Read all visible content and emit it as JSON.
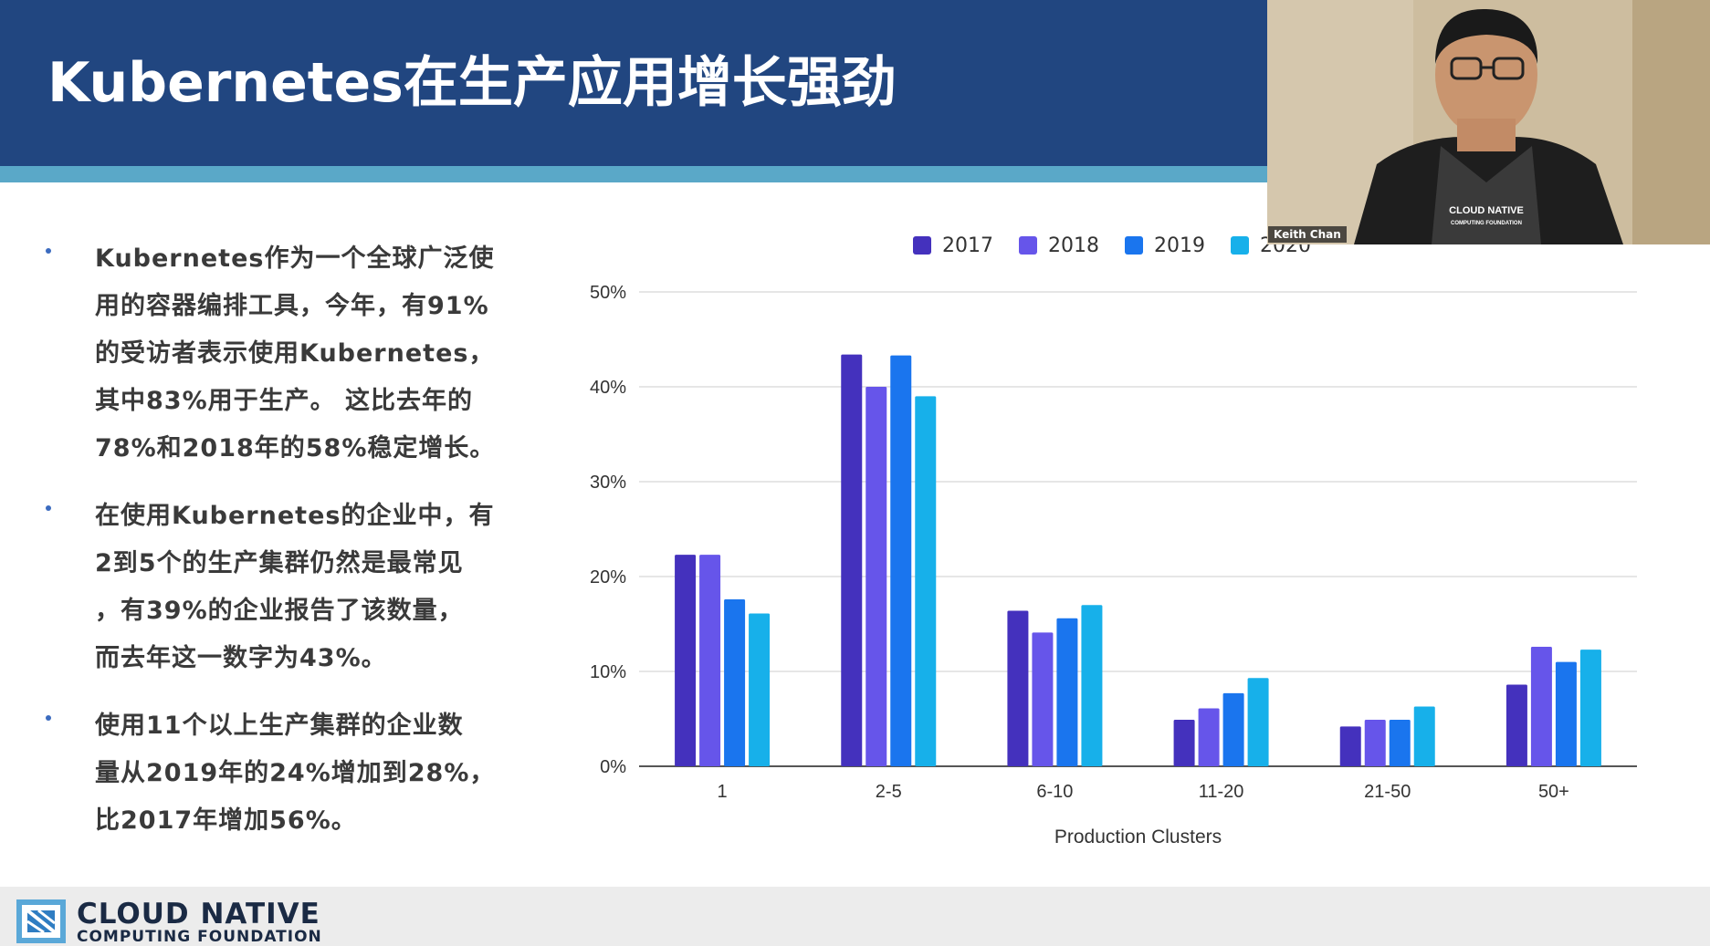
{
  "slide": {
    "title": "Kubernetes在生产应用增长强劲",
    "bullets": [
      {
        "lines": [
          "Kubernetes作为一个全球广泛使",
          "用的容器编排工具，今年，有91%",
          "的受访者表示使用Kubernetes，",
          "其中83%用于生产。 这比去年的",
          "78%和2018年的58%稳定增长。"
        ]
      },
      {
        "lines": [
          "在使用Kubernetes的企业中，有",
          "2到5个的生产集群仍然是最常见",
          "，有39%的企业报告了该数量，",
          "而去年这一数字为43%。"
        ]
      },
      {
        "lines": [
          "使用11个以上生产集群的企业数",
          "量从2019年的24%增加到28%，",
          "比2017年增加56%。"
        ]
      }
    ]
  },
  "chart_data": {
    "type": "bar",
    "categories": [
      "1",
      "2-5",
      "6-10",
      "11-20",
      "21-50",
      "50+"
    ],
    "series": [
      {
        "name": "2017",
        "color": "#4431bd",
        "values": [
          22.3,
          43.4,
          16.4,
          4.9,
          4.2,
          8.6
        ]
      },
      {
        "name": "2018",
        "color": "#6655ea",
        "values": [
          22.3,
          40.0,
          14.1,
          6.1,
          4.9,
          12.6
        ]
      },
      {
        "name": "2019",
        "color": "#1a75ee",
        "values": [
          17.6,
          43.3,
          15.6,
          7.7,
          4.9,
          11.0
        ]
      },
      {
        "name": "2020",
        "color": "#17b0ea",
        "values": [
          16.1,
          39.0,
          17.0,
          9.3,
          6.3,
          12.3
        ]
      }
    ],
    "xlabel": "Production Clusters",
    "ylabel": "",
    "yticks": [
      "0%",
      "10%",
      "20%",
      "30%",
      "40%",
      "50%"
    ],
    "ylim": [
      0,
      50
    ],
    "grid": true,
    "legend": "top"
  },
  "footer": {
    "org_line1": "CLOUD NATIVE",
    "org_line2": "COMPUTING FOUNDATION"
  },
  "webcam": {
    "participant_name": "Keith Chan",
    "shirt_text_1": "CLOUD NATIVE",
    "shirt_text_2": "COMPUTING FOUNDATION"
  }
}
